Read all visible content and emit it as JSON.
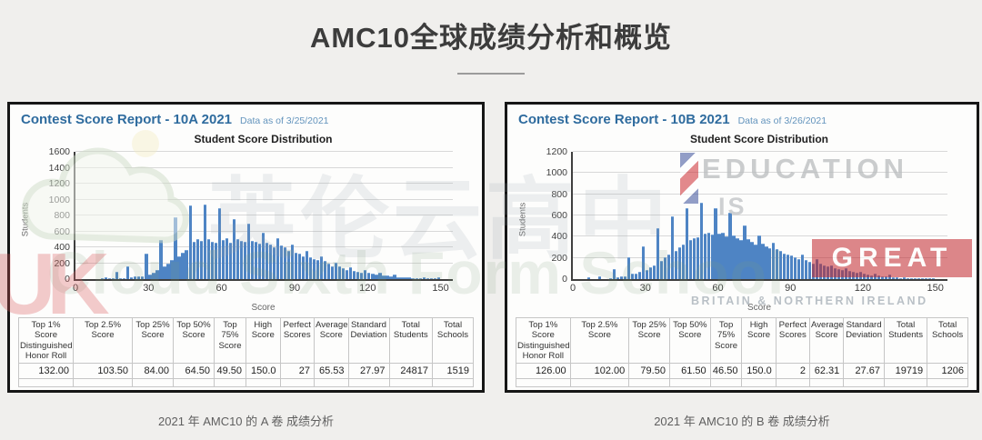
{
  "page": {
    "title": "AMC10全球成绩分析和概览",
    "captions": [
      "2021 年 AMC10 的 A 卷 成绩分析",
      "2021 年 AMC10 的 B 卷 成绩分析"
    ]
  },
  "colors": {
    "background": "#f0efed",
    "panel_border": "#161616",
    "bar_blue": "#4e84c4",
    "report_title_blue": "#2e6b9e",
    "data_asof_blue": "#6394bd",
    "watermark_red": "#c2262c"
  },
  "watermarks": {
    "cn": "英伦云高中",
    "school": "Cloud Sixth Form School",
    "uk": "UK",
    "education": "EDUCATION",
    "is": "IS",
    "great": "GREAT",
    "britain": "BRITAIN & NORTHERN IRELAND"
  },
  "panels": [
    {
      "report_title": "Contest Score Report -  10A 2021",
      "data_as_of": "Data as of 3/25/2021",
      "table": {
        "headers": [
          "Top 1% Score Distinguished Honor Roll",
          "Top 2.5% Score",
          "Top 25% Score",
          "Top 50% Score",
          "Top 75% Score",
          "High Score",
          "Perfect Scores",
          "Average Score",
          "Standard Deviation",
          "Total Students",
          "Total Schools"
        ],
        "values": [
          "132.00",
          "103.50",
          "84.00",
          "64.50",
          "49.50",
          "150.0",
          "27",
          "65.53",
          "27.97",
          "24817",
          "1519"
        ]
      }
    },
    {
      "report_title": "Contest Score Report -  10B 2021",
      "data_as_of": "Data as of 3/26/2021",
      "table": {
        "headers": [
          "Top 1% Score Distinguished Honor Roll",
          "Top 2.5% Score",
          "Top 25% Score",
          "Top 50% Score",
          "Top 75% Score",
          "High Score",
          "Perfect Scores",
          "Average Score",
          "Standard Deviation",
          "Total Students",
          "Total Schools"
        ],
        "values": [
          "126.00",
          "102.00",
          "79.50",
          "61.50",
          "46.50",
          "150.0",
          "2",
          "62.31",
          "27.67",
          "19719",
          "1206"
        ]
      }
    }
  ],
  "chart_data": [
    {
      "type": "bar",
      "title": "Student Score Distribution",
      "xlabel": "Score",
      "ylabel": "Students",
      "xlim": [
        0,
        155
      ],
      "ylim": [
        0,
        1600
      ],
      "xticks": [
        0,
        30,
        60,
        90,
        120,
        150
      ],
      "yticks": [
        0,
        200,
        400,
        600,
        800,
        1000,
        1200,
        1400,
        1600
      ],
      "bar_width": 1.5,
      "grid": true,
      "points": [
        [
          12,
          10
        ],
        [
          13.5,
          20
        ],
        [
          15,
          8
        ],
        [
          16.5,
          8
        ],
        [
          18,
          90
        ],
        [
          19.5,
          12
        ],
        [
          21,
          12
        ],
        [
          22.5,
          160
        ],
        [
          24,
          25
        ],
        [
          25.5,
          30
        ],
        [
          27,
          35
        ],
        [
          28.5,
          40
        ],
        [
          30,
          320
        ],
        [
          31.5,
          60
        ],
        [
          33,
          75
        ],
        [
          34.5,
          110
        ],
        [
          36,
          490
        ],
        [
          37.5,
          160
        ],
        [
          39,
          195
        ],
        [
          40.5,
          235
        ],
        [
          42,
          775
        ],
        [
          43.5,
          285
        ],
        [
          45,
          330
        ],
        [
          46.5,
          365
        ],
        [
          48,
          930
        ],
        [
          49.5,
          470
        ],
        [
          51,
          505
        ],
        [
          52.5,
          480
        ],
        [
          54,
          935
        ],
        [
          55.5,
          505
        ],
        [
          57,
          470
        ],
        [
          58.5,
          455
        ],
        [
          60,
          890
        ],
        [
          61.5,
          490
        ],
        [
          63,
          515
        ],
        [
          64.5,
          455
        ],
        [
          66,
          760
        ],
        [
          67.5,
          505
        ],
        [
          69,
          485
        ],
        [
          70.5,
          465
        ],
        [
          72,
          700
        ],
        [
          73.5,
          485
        ],
        [
          75,
          470
        ],
        [
          76.5,
          445
        ],
        [
          78,
          585
        ],
        [
          79.5,
          455
        ],
        [
          81,
          430
        ],
        [
          82.5,
          405
        ],
        [
          84,
          510
        ],
        [
          85.5,
          425
        ],
        [
          87,
          395
        ],
        [
          88.5,
          355
        ],
        [
          90,
          430
        ],
        [
          91.5,
          335
        ],
        [
          93,
          315
        ],
        [
          94.5,
          285
        ],
        [
          96,
          350
        ],
        [
          97.5,
          275
        ],
        [
          99,
          255
        ],
        [
          100.5,
          235
        ],
        [
          102,
          290
        ],
        [
          103.5,
          225
        ],
        [
          105,
          195
        ],
        [
          106.5,
          165
        ],
        [
          108,
          205
        ],
        [
          109.5,
          155
        ],
        [
          111,
          135
        ],
        [
          112.5,
          115
        ],
        [
          114,
          145
        ],
        [
          115.5,
          105
        ],
        [
          117,
          95
        ],
        [
          118.5,
          80
        ],
        [
          120,
          115
        ],
        [
          121.5,
          75
        ],
        [
          123,
          65
        ],
        [
          124.5,
          55
        ],
        [
          126,
          85
        ],
        [
          127.5,
          50
        ],
        [
          129,
          42
        ],
        [
          130.5,
          35
        ],
        [
          132,
          60
        ],
        [
          133.5,
          28
        ],
        [
          135,
          22
        ],
        [
          136.5,
          18
        ],
        [
          138,
          28
        ],
        [
          139.5,
          14
        ],
        [
          141,
          12
        ],
        [
          142.5,
          10
        ],
        [
          144,
          22
        ],
        [
          145.5,
          10
        ],
        [
          147,
          8
        ],
        [
          148.5,
          6
        ],
        [
          150,
          27
        ]
      ]
    },
    {
      "type": "bar",
      "title": "Student Score Distribution",
      "xlabel": "Score",
      "ylabel": "Students",
      "xlim": [
        0,
        155
      ],
      "ylim": [
        0,
        1200
      ],
      "xticks": [
        0,
        30,
        60,
        90,
        120,
        150
      ],
      "yticks": [
        0,
        200,
        400,
        600,
        800,
        1000,
        1200
      ],
      "bar_width": 1.5,
      "grid": true,
      "points": [
        [
          7.5,
          15
        ],
        [
          12,
          30
        ],
        [
          16.5,
          10
        ],
        [
          18,
          95
        ],
        [
          19.5,
          15
        ],
        [
          21,
          25
        ],
        [
          22.5,
          28
        ],
        [
          24,
          205
        ],
        [
          25.5,
          50
        ],
        [
          27,
          55
        ],
        [
          28.5,
          65
        ],
        [
          30,
          310
        ],
        [
          31.5,
          90
        ],
        [
          33,
          110
        ],
        [
          34.5,
          130
        ],
        [
          36,
          480
        ],
        [
          37.5,
          175
        ],
        [
          39,
          210
        ],
        [
          40.5,
          228
        ],
        [
          42,
          590
        ],
        [
          43.5,
          270
        ],
        [
          45,
          300
        ],
        [
          46.5,
          330
        ],
        [
          48,
          670
        ],
        [
          49.5,
          370
        ],
        [
          51,
          385
        ],
        [
          52.5,
          395
        ],
        [
          54,
          720
        ],
        [
          55.5,
          430
        ],
        [
          57,
          440
        ],
        [
          58.5,
          418
        ],
        [
          60,
          670
        ],
        [
          61.5,
          432
        ],
        [
          63,
          440
        ],
        [
          64.5,
          405
        ],
        [
          66,
          630
        ],
        [
          67.5,
          410
        ],
        [
          69,
          390
        ],
        [
          70.5,
          372
        ],
        [
          72,
          510
        ],
        [
          73.5,
          380
        ],
        [
          75,
          352
        ],
        [
          76.5,
          330
        ],
        [
          78,
          415
        ],
        [
          79.5,
          332
        ],
        [
          81,
          312
        ],
        [
          82.5,
          292
        ],
        [
          84,
          340
        ],
        [
          85.5,
          282
        ],
        [
          87,
          262
        ],
        [
          88.5,
          242
        ],
        [
          90,
          230
        ],
        [
          91.5,
          222
        ],
        [
          93,
          202
        ],
        [
          94.5,
          190
        ],
        [
          96,
          232
        ],
        [
          97.5,
          182
        ],
        [
          99,
          165
        ],
        [
          100.5,
          150
        ],
        [
          102,
          185
        ],
        [
          103.5,
          142
        ],
        [
          105,
          130
        ],
        [
          106.5,
          117
        ],
        [
          108,
          132
        ],
        [
          109.5,
          107
        ],
        [
          111,
          95
        ],
        [
          112.5,
          85
        ],
        [
          114,
          102
        ],
        [
          115.5,
          77
        ],
        [
          117,
          67
        ],
        [
          118.5,
          57
        ],
        [
          120,
          72
        ],
        [
          121.5,
          52
        ],
        [
          123,
          45
        ],
        [
          124.5,
          38
        ],
        [
          126,
          55
        ],
        [
          127.5,
          33
        ],
        [
          129,
          28
        ],
        [
          130.5,
          23
        ],
        [
          132,
          40
        ],
        [
          133.5,
          18
        ],
        [
          135,
          14
        ],
        [
          136.5,
          11
        ],
        [
          138,
          13
        ],
        [
          139.5,
          9
        ],
        [
          141,
          7
        ],
        [
          142.5,
          5
        ],
        [
          144,
          11
        ],
        [
          145.5,
          5
        ],
        [
          147,
          4
        ],
        [
          148.5,
          3
        ],
        [
          150,
          2
        ]
      ]
    }
  ]
}
